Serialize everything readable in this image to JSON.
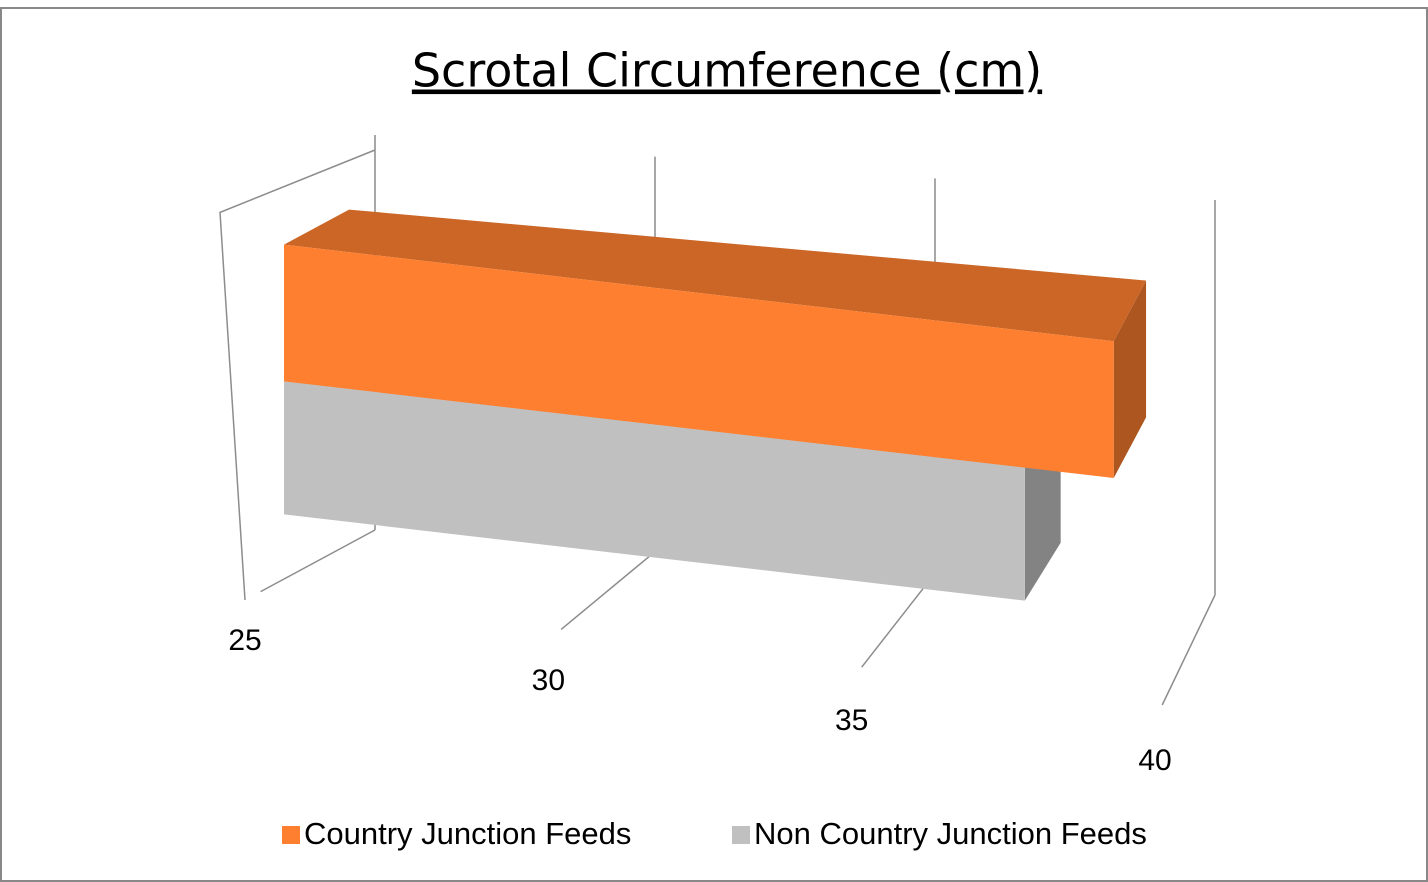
{
  "chart_data": {
    "type": "bar",
    "orientation": "horizontal",
    "title": "Scrotal Circumference (cm)",
    "categories": [
      null
    ],
    "series": [
      {
        "name": "Country Junction Feeds",
        "color": "#fe7f2f",
        "values": [
          39
        ]
      },
      {
        "name": "Non Country Junction Feeds",
        "color": "#c0c0c0",
        "values": [
          37.5
        ]
      }
    ],
    "xlim": [
      25,
      40
    ],
    "xticks": [
      25,
      30,
      35,
      40
    ],
    "grid": true,
    "legend": "bottom"
  }
}
